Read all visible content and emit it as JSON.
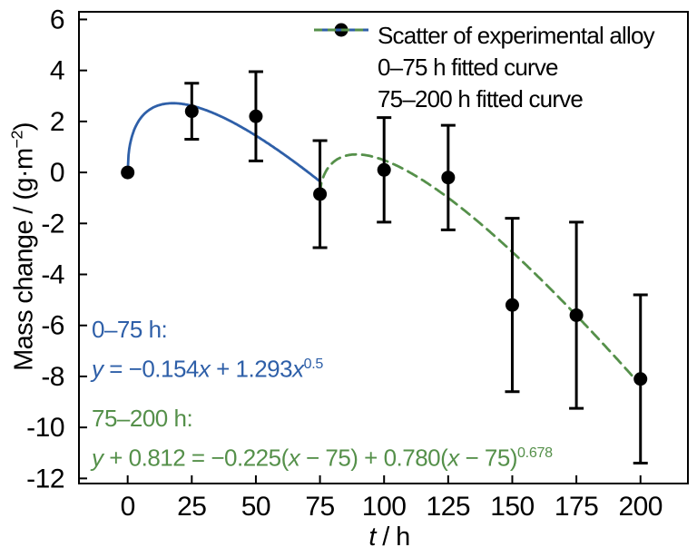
{
  "figure": {
    "background": "#ffffff",
    "colors": {
      "blue": "#2e5fa8",
      "green": "#55904a",
      "black": "#000000"
    },
    "legend": {
      "items": [
        {
          "swatch": "dot",
          "label": "Scatter of experimental alloy",
          "color": "#000000"
        },
        {
          "swatch": "solid-line",
          "label": "0–75 h fitted curve",
          "color": "#2e5fa8"
        },
        {
          "swatch": "dashed-line",
          "label": "75–200 h fitted curve",
          "color": "#55904a"
        }
      ]
    },
    "x_title_segments": [
      {
        "t": "t",
        "i": true
      },
      {
        "t": " / h"
      }
    ],
    "y_title_segments": [
      {
        "t": "Mass change / (g·m"
      },
      {
        "t": "−2",
        "s": true
      },
      {
        "t": ")"
      }
    ],
    "annotations": [
      {
        "name": "fit-0-75",
        "color": "#2e5fa8",
        "lines": [
          [
            {
              "t": "0–75 h:"
            }
          ],
          [
            {
              "t": "y",
              "i": true
            },
            {
              "t": " = −0.154"
            },
            {
              "t": "x",
              "i": true
            },
            {
              "t": " + 1.293"
            },
            {
              "t": "x",
              "i": true
            },
            {
              "t": "0.5",
              "s": true
            }
          ]
        ]
      },
      {
        "name": "fit-75-200",
        "color": "#55904a",
        "lines": [
          [
            {
              "t": "75–200 h:"
            }
          ],
          [
            {
              "t": "y",
              "i": true
            },
            {
              "t": " + 0.812 = −0.225("
            },
            {
              "t": "x",
              "i": true
            },
            {
              "t": " − 75) + 0.780("
            },
            {
              "t": "x",
              "i": true
            },
            {
              "t": " − 75)"
            },
            {
              "t": "0.678",
              "s": true
            }
          ]
        ]
      }
    ]
  },
  "chart_data": {
    "type": "scatter",
    "title": "",
    "xlabel": "t / h",
    "ylabel": "Mass change / (g·m−2)",
    "xlim": [
      -19,
      218.5
    ],
    "ylim": [
      -12.2,
      6.3
    ],
    "xticks": [
      0,
      25,
      50,
      75,
      100,
      125,
      150,
      175,
      200
    ],
    "yticks": [
      6,
      4,
      2,
      0,
      -2,
      -4,
      -6,
      -8,
      -10,
      -12
    ],
    "grid": false,
    "legend_position": "upper right",
    "series": [
      {
        "name": "Scatter of experimental alloy",
        "type": "scatter",
        "marker": "circle",
        "color": "#000000",
        "x": [
          0,
          25,
          50,
          75,
          100,
          125,
          150,
          175,
          200
        ],
        "y": [
          0.0,
          2.4,
          2.2,
          -0.85,
          0.1,
          -0.2,
          -5.2,
          -5.6,
          -8.1
        ],
        "yerr": [
          0,
          1.1,
          1.75,
          2.1,
          2.05,
          2.05,
          3.4,
          3.65,
          3.3
        ]
      },
      {
        "name": "0–75 h fitted curve",
        "type": "curve",
        "linestyle": "solid",
        "color": "#2e5fa8",
        "equation": "y = −0.154x + 1.293x^0.5",
        "params": {
          "c": 0,
          "a": -0.154,
          "b": 1.293,
          "p": 0.5,
          "x0": 0
        },
        "x_range": [
          0,
          75
        ]
      },
      {
        "name": "75–200 h fitted curve",
        "type": "curve",
        "linestyle": "dashed",
        "color": "#55904a",
        "equation": "y + 0.812 = −0.225(x − 75) + 0.780(x − 75)^0.678",
        "params": {
          "c": -0.812,
          "a": -0.225,
          "b": 0.78,
          "p": 0.678,
          "x0": 75
        },
        "x_range": [
          75,
          200
        ]
      }
    ]
  }
}
